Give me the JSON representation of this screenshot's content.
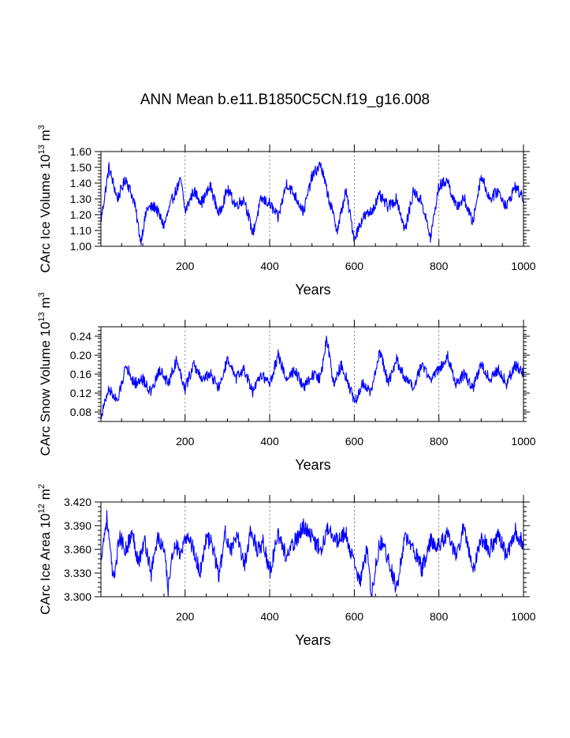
{
  "title": "ANN Mean b.e11.B1850C5CN.f19_g16.008",
  "line_color": "#0000ff",
  "chart_data": [
    {
      "type": "line",
      "name": "CArc Ice Volume",
      "ylabel_main": "CArc Ice Volume 10",
      "ylabel_exp": "13",
      "ylabel_unit": " m",
      "ylabel_unit_exp": "3",
      "xlabel": "Years",
      "xlim": [
        1,
        1000
      ],
      "ylim": [
        1.0,
        1.6
      ],
      "xticks": [
        200,
        400,
        600,
        800,
        1000
      ],
      "yticks": [
        1.0,
        1.1,
        1.2,
        1.3,
        1.4,
        1.5,
        1.6
      ],
      "yticklabels": [
        "1.00",
        "1.10",
        "1.20",
        "1.30",
        "1.40",
        "1.50",
        "1.60"
      ],
      "grid_x": [
        200,
        400,
        600,
        800
      ],
      "x": [
        1,
        20,
        40,
        60,
        80,
        95,
        110,
        130,
        150,
        170,
        190,
        200,
        220,
        240,
        260,
        280,
        300,
        320,
        340,
        360,
        380,
        400,
        420,
        440,
        460,
        480,
        500,
        520,
        540,
        560,
        580,
        600,
        620,
        640,
        660,
        680,
        700,
        720,
        740,
        760,
        780,
        800,
        820,
        840,
        860,
        880,
        900,
        920,
        940,
        960,
        980,
        1000
      ],
      "values": [
        1.16,
        1.5,
        1.3,
        1.43,
        1.28,
        1.03,
        1.24,
        1.25,
        1.13,
        1.3,
        1.42,
        1.22,
        1.35,
        1.28,
        1.38,
        1.2,
        1.36,
        1.26,
        1.3,
        1.08,
        1.3,
        1.27,
        1.18,
        1.4,
        1.32,
        1.22,
        1.44,
        1.52,
        1.3,
        1.1,
        1.35,
        1.05,
        1.18,
        1.22,
        1.32,
        1.25,
        1.3,
        1.1,
        1.35,
        1.28,
        1.05,
        1.38,
        1.42,
        1.25,
        1.3,
        1.15,
        1.45,
        1.3,
        1.35,
        1.25,
        1.38,
        1.3
      ]
    },
    {
      "type": "line",
      "name": "CArc Snow Volume",
      "ylabel_main": "CArc Snow Volume 10",
      "ylabel_exp": "13",
      "ylabel_unit": " m",
      "ylabel_unit_exp": "3",
      "xlabel": "Years",
      "xlim": [
        1,
        1000
      ],
      "ylim": [
        0.06,
        0.26
      ],
      "xticks": [
        200,
        400,
        600,
        800,
        1000
      ],
      "yticks": [
        0.08,
        0.12,
        0.16,
        0.2,
        0.24
      ],
      "yticklabels": [
        "0.08",
        "0.12",
        "0.16",
        "0.20",
        "0.24"
      ],
      "grid_x": [
        200,
        400,
        600,
        800
      ],
      "x": [
        1,
        20,
        40,
        60,
        80,
        100,
        120,
        140,
        160,
        180,
        200,
        220,
        240,
        260,
        280,
        300,
        320,
        340,
        360,
        380,
        400,
        420,
        440,
        460,
        480,
        500,
        520,
        535,
        550,
        570,
        590,
        600,
        620,
        640,
        660,
        680,
        700,
        720,
        740,
        760,
        780,
        800,
        820,
        840,
        860,
        880,
        900,
        920,
        940,
        960,
        980,
        1000
      ],
      "values": [
        0.07,
        0.13,
        0.1,
        0.18,
        0.14,
        0.15,
        0.12,
        0.17,
        0.14,
        0.19,
        0.13,
        0.18,
        0.15,
        0.16,
        0.13,
        0.19,
        0.15,
        0.17,
        0.12,
        0.16,
        0.14,
        0.2,
        0.15,
        0.17,
        0.13,
        0.16,
        0.15,
        0.24,
        0.14,
        0.18,
        0.13,
        0.1,
        0.14,
        0.12,
        0.21,
        0.14,
        0.19,
        0.15,
        0.13,
        0.18,
        0.15,
        0.17,
        0.2,
        0.14,
        0.16,
        0.13,
        0.18,
        0.15,
        0.17,
        0.14,
        0.18,
        0.16
      ]
    },
    {
      "type": "line",
      "name": "CArc Ice Area",
      "ylabel_main": "CArc Ice Area 10",
      "ylabel_exp": "12",
      "ylabel_unit": " m",
      "ylabel_unit_exp": "2",
      "xlabel": "Years",
      "xlim": [
        1,
        1000
      ],
      "ylim": [
        3.3,
        3.42
      ],
      "xticks": [
        200,
        400,
        600,
        800,
        1000
      ],
      "yticks": [
        3.3,
        3.33,
        3.36,
        3.39,
        3.42
      ],
      "yticklabels": [
        "3.300",
        "3.330",
        "3.360",
        "3.390",
        "3.420"
      ],
      "grid_x": [
        200,
        400,
        600,
        800
      ],
      "x": [
        1,
        15,
        30,
        45,
        60,
        75,
        90,
        105,
        120,
        135,
        150,
        160,
        175,
        190,
        205,
        220,
        235,
        250,
        265,
        280,
        295,
        310,
        325,
        340,
        355,
        370,
        385,
        400,
        420,
        440,
        460,
        480,
        500,
        520,
        540,
        560,
        580,
        600,
        615,
        630,
        640,
        660,
        680,
        700,
        720,
        740,
        760,
        780,
        800,
        820,
        840,
        860,
        880,
        900,
        920,
        940,
        960,
        980,
        1000
      ],
      "values": [
        3.35,
        3.4,
        3.32,
        3.375,
        3.36,
        3.38,
        3.345,
        3.37,
        3.33,
        3.375,
        3.36,
        3.31,
        3.37,
        3.35,
        3.38,
        3.36,
        3.33,
        3.375,
        3.365,
        3.325,
        3.38,
        3.36,
        3.375,
        3.34,
        3.385,
        3.36,
        3.37,
        3.33,
        3.38,
        3.35,
        3.37,
        3.39,
        3.375,
        3.36,
        3.39,
        3.37,
        3.38,
        3.34,
        3.32,
        3.36,
        3.3,
        3.37,
        3.35,
        3.31,
        3.375,
        3.36,
        3.335,
        3.37,
        3.365,
        3.38,
        3.35,
        3.39,
        3.33,
        3.375,
        3.36,
        3.38,
        3.35,
        3.385,
        3.365
      ]
    }
  ]
}
